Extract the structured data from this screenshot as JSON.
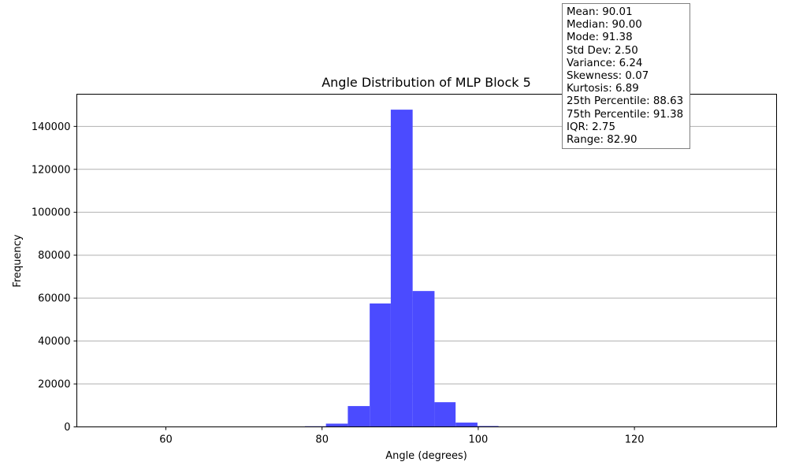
{
  "chart_data": {
    "type": "bar",
    "title": "Angle Distribution of MLP Block 5",
    "xlabel": "Angle (degrees)",
    "ylabel": "Frequency",
    "xlim": [
      48.6,
      138.2
    ],
    "ylim": [
      0,
      155000
    ],
    "xticks": [
      60,
      80,
      100,
      120
    ],
    "yticks": [
      0,
      20000,
      40000,
      60000,
      80000,
      100000,
      120000,
      140000
    ],
    "grid": "y",
    "bar_color": "#4b4bff",
    "bins": [
      {
        "x0": 77.8,
        "x1": 80.5,
        "value": 300
      },
      {
        "x0": 80.5,
        "x1": 83.3,
        "value": 1500
      },
      {
        "x0": 83.3,
        "x1": 86.1,
        "value": 9700
      },
      {
        "x0": 86.1,
        "x1": 88.8,
        "value": 57500
      },
      {
        "x0": 88.8,
        "x1": 91.6,
        "value": 147800
      },
      {
        "x0": 91.6,
        "x1": 94.4,
        "value": 63300
      },
      {
        "x0": 94.4,
        "x1": 97.1,
        "value": 11500
      },
      {
        "x0": 97.1,
        "x1": 99.9,
        "value": 2000
      },
      {
        "x0": 99.9,
        "x1": 102.6,
        "value": 400
      },
      {
        "x0": 102.6,
        "x1": 105.4,
        "value": 200
      }
    ]
  },
  "stats": [
    "Mean: 90.01",
    "Median: 90.00",
    "Mode: 91.38",
    "Std Dev: 2.50",
    "Variance: 6.24",
    "Skewness: 0.07",
    "Kurtosis: 6.89",
    "25th Percentile: 88.63",
    "75th Percentile: 91.38",
    "IQR: 2.75",
    "Range: 82.90"
  ]
}
